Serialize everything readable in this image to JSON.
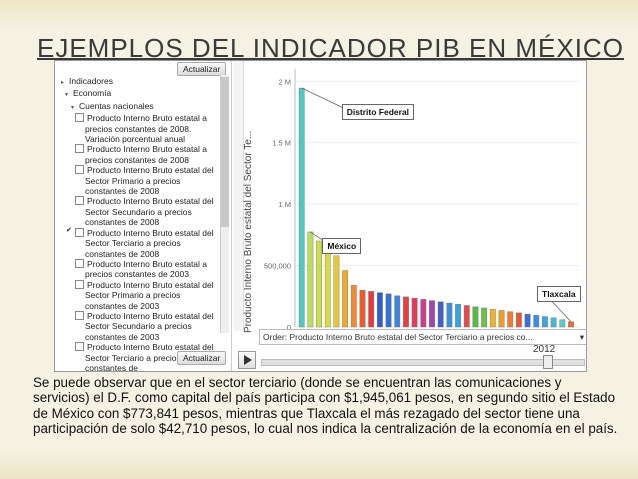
{
  "slide": {
    "title": "EJEMPLOS DEL INDICADOR  PIB EN MÉXICO",
    "paragraph": "Se puede observar que en el sector terciario (donde se encuentran las comunicaciones y servicios) el D.F. como capital del país participa con $1,945,061 pesos, en segundo sitio el Estado de México con $773,841 pesos, mientras que Tlaxcala el más rezagado del sector tiene una participación de solo $42,710 pesos, lo cual nos indica la centralización de la economía en el país."
  },
  "panel": {
    "update_top": "Actualizar",
    "update_bottom": "Actualizar",
    "tree": {
      "root": "Indicadores",
      "economy": "Economía",
      "national_accounts": "Cuentas nacionales",
      "items": [
        {
          "label": "Producto Interno Bruto estatal a precios constantes de 2008. Variación porcentual anual",
          "checked": false
        },
        {
          "label": "Producto Interno Bruto estatal a precios constantes de 2008",
          "checked": false
        },
        {
          "label": "Producto Interno Bruto estatal del Sector Primario a precios constantes de 2008",
          "checked": false
        },
        {
          "label": "Producto Interno Bruto estatal del Sector Secundario a precios constantes de 2008",
          "checked": false
        },
        {
          "label": "Producto Interno Bruto estatal del Sector Terciario a precios constantes de 2008",
          "checked": true
        },
        {
          "label": "Producto Interno Bruto estatal a precios constantes de 2003",
          "checked": false
        },
        {
          "label": "Producto Interno Bruto estatal del Sector Primario a precios constantes de 2003",
          "checked": false
        },
        {
          "label": "Producto Interno Bruto estatal del Sector Secundario a precios constantes de 2003",
          "checked": false
        },
        {
          "label": "Producto Interno Bruto estatal del Sector Terciario a precios constantes de",
          "checked": false
        }
      ]
    }
  },
  "chart_data": {
    "type": "bar",
    "ylabel": "Producto Interno Bruto estatal del Sector Te...",
    "ylim": [
      0,
      2100000
    ],
    "yticks": [
      {
        "value": 0,
        "label": "0"
      },
      {
        "value": 500000,
        "label": "500,000"
      },
      {
        "value": 1000000,
        "label": "1 M"
      },
      {
        "value": 1500000,
        "label": "1.5 M"
      },
      {
        "value": 2000000,
        "label": "2 M"
      }
    ],
    "values": [
      1945061,
      773841,
      700000,
      640000,
      580000,
      460000,
      340000,
      300000,
      290000,
      280000,
      270000,
      255000,
      245000,
      235000,
      225000,
      215000,
      205000,
      195000,
      185000,
      175000,
      165000,
      155000,
      145000,
      135000,
      125000,
      115000,
      105000,
      95000,
      85000,
      75000,
      60000,
      42710
    ],
    "colors": [
      "#4ec9c2",
      "#b7e05a",
      "#c8e04c",
      "#d8dc3c",
      "#e8c53a",
      "#f0a830",
      "#f08a2e",
      "#ee5a2e",
      "#e83a3a",
      "#2f5fc8",
      "#3470d6",
      "#3b86e2",
      "#e84040",
      "#e23a5a",
      "#cf3e8c",
      "#a045b8",
      "#4060d0",
      "#3a8fe0",
      "#33a6e0",
      "#e84848",
      "#58b84a",
      "#6ac246",
      "#f0b22c",
      "#f09a2a",
      "#f07a2e",
      "#e85a32",
      "#3a70d0",
      "#3a90e0",
      "#3aa6e2",
      "#48b8d8",
      "#58c8c8",
      "#ef6c2e"
    ],
    "callouts": [
      {
        "label": "Distrito Federal",
        "bar": 0
      },
      {
        "label": "México",
        "bar": 1
      },
      {
        "label": "Tlaxcala",
        "bar": 31
      }
    ]
  },
  "controls": {
    "order": "Order: Producto Interno Bruto estatal del Sector Terciario a precios co...",
    "order_arrow": "▾",
    "year": "2012",
    "play_icon": "play-icon"
  }
}
